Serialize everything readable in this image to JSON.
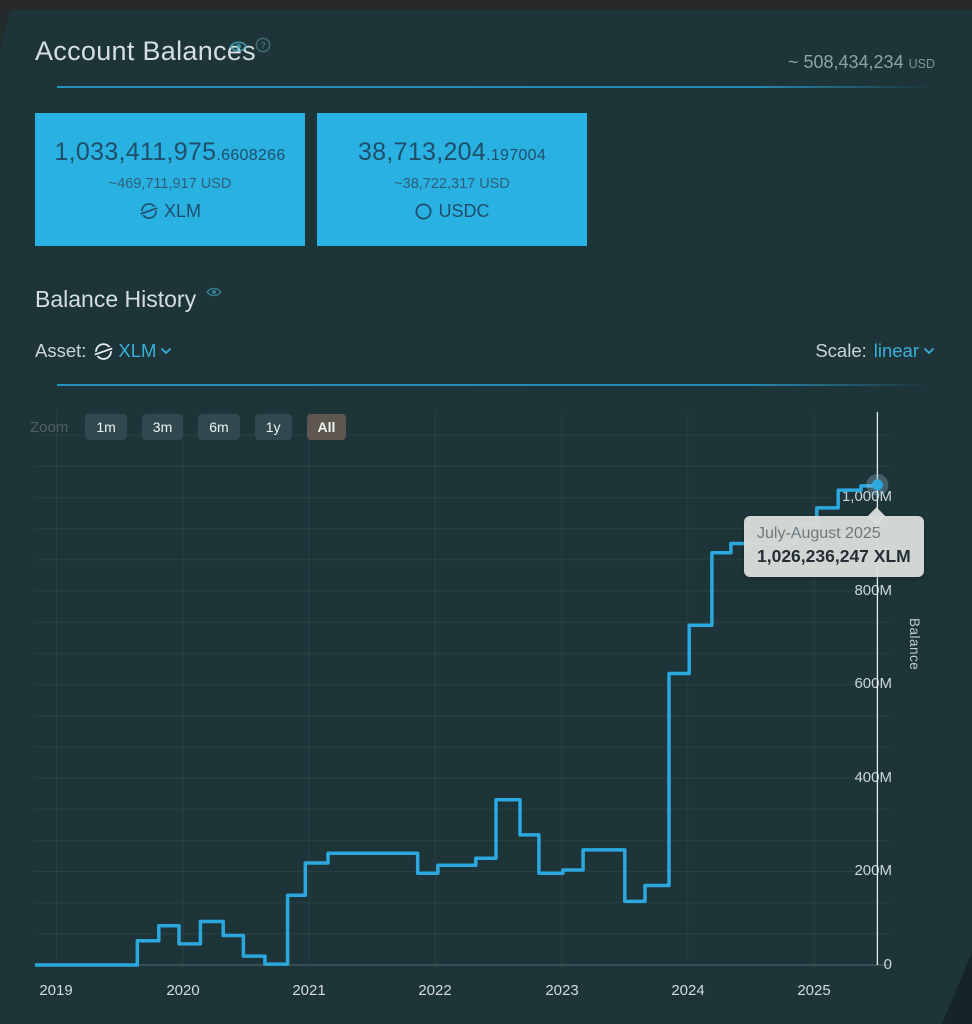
{
  "header": {
    "title": "Account Balances",
    "total_amount": "~ 508,434,234",
    "total_currency": "USD"
  },
  "balances": [
    {
      "amount_int": "1,033,411,975",
      "amount_frac": ".6608266",
      "usd": "~469,711,917 USD",
      "asset": "XLM"
    },
    {
      "amount_int": "38,713,204",
      "amount_frac": ".197004",
      "usd": "~38,722,317 USD",
      "asset": "USDC"
    }
  ],
  "history": {
    "title": "Balance History",
    "asset_label": "Asset:",
    "asset_value": "XLM",
    "scale_label": "Scale:",
    "scale_value": "linear"
  },
  "chart": {
    "zoom_label": "Zoom",
    "zoom_buttons": [
      {
        "label": "1m",
        "selected": false
      },
      {
        "label": "3m",
        "selected": false
      },
      {
        "label": "6m",
        "selected": false
      },
      {
        "label": "1y",
        "selected": false
      },
      {
        "label": "All",
        "selected": true
      }
    ],
    "tooltip": {
      "period": "July-August 2025",
      "value": "1,026,236,247 XLM"
    }
  },
  "colors": {
    "accent_cyan": "#39b0da",
    "card_bg": "#29b1e2",
    "line": "#2ca8de",
    "divider": "#2896c5",
    "background": "#1d3439",
    "tooltip_bg": "#d8dcda"
  },
  "chart_data": {
    "type": "line",
    "step": true,
    "title": "",
    "ylabel": "Balance",
    "legend_position": "none",
    "grid": true,
    "x_range": [
      2018.83,
      2025.6
    ],
    "y_range": [
      0,
      1182
    ],
    "y_minor_grid_step": 66.6,
    "x_ticks": [
      {
        "v": 2019,
        "label": "2019"
      },
      {
        "v": 2020,
        "label": "2020"
      },
      {
        "v": 2021,
        "label": "2021"
      },
      {
        "v": 2022,
        "label": "2022"
      },
      {
        "v": 2023,
        "label": "2023"
      },
      {
        "v": 2024,
        "label": "2024"
      },
      {
        "v": 2025,
        "label": "2025"
      }
    ],
    "y_ticks": [
      {
        "v": 0,
        "label": "0"
      },
      {
        "v": 200,
        "label": "200M"
      },
      {
        "v": 400,
        "label": "400M"
      },
      {
        "v": 600,
        "label": "600M"
      },
      {
        "v": 800,
        "label": "800M"
      },
      {
        "v": 1000,
        "label": "1,000M"
      }
    ],
    "series": [
      {
        "name": "XLM Balance",
        "color": "#2ca8de",
        "unit": "millions of XLM",
        "points_year_value_millions": [
          [
            2018.83,
            0
          ],
          [
            2019.64,
            52
          ],
          [
            2019.81,
            84
          ],
          [
            2019.97,
            45
          ],
          [
            2020.14,
            93
          ],
          [
            2020.32,
            63
          ],
          [
            2020.48,
            19
          ],
          [
            2020.65,
            2
          ],
          [
            2020.83,
            149
          ],
          [
            2020.97,
            218
          ],
          [
            2021.15,
            239
          ],
          [
            2021.86,
            196
          ],
          [
            2022.02,
            213
          ],
          [
            2022.32,
            228
          ],
          [
            2022.48,
            353
          ],
          [
            2022.67,
            278
          ],
          [
            2022.82,
            196
          ],
          [
            2023.01,
            203
          ],
          [
            2023.17,
            246
          ],
          [
            2023.5,
            136
          ],
          [
            2023.66,
            170
          ],
          [
            2023.85,
            623
          ],
          [
            2024.01,
            726
          ],
          [
            2024.19,
            881
          ],
          [
            2024.34,
            901
          ],
          [
            2024.86,
            942
          ],
          [
            2025.02,
            977
          ],
          [
            2025.19,
            1015
          ],
          [
            2025.37,
            1024
          ],
          [
            2025.5,
            1026.2
          ]
        ]
      }
    ],
    "crosshair_x": 2025.5,
    "marker": {
      "x": 2025.5,
      "v": 1026.2,
      "tooltip_value_exact": "1,026,236,247 XLM"
    }
  }
}
